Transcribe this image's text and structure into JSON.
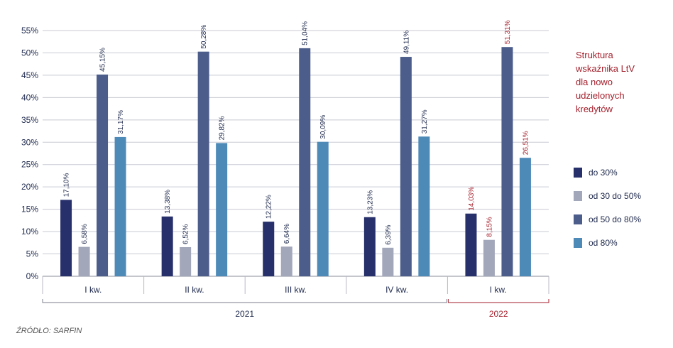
{
  "chart_data": {
    "type": "bar",
    "title_lines": [
      "Struktura",
      "wskaźnika LtV",
      "dla nowo",
      "udzielonych",
      "kredytów"
    ],
    "categories": [
      "I kw.",
      "II kw.",
      "III kw.",
      "IV kw.",
      "I kw."
    ],
    "years": [
      {
        "label": "2021",
        "span": [
          0,
          3
        ]
      },
      {
        "label": "2022",
        "span": [
          4,
          4
        ]
      }
    ],
    "ylim": [
      0,
      55
    ],
    "yticks": [
      0,
      5,
      10,
      15,
      20,
      25,
      30,
      35,
      40,
      45,
      50,
      55
    ],
    "ytick_labels": [
      "0%",
      "5%",
      "10%",
      "15%",
      "20%",
      "25%",
      "30%",
      "35%",
      "40%",
      "45%",
      "50%",
      "55%"
    ],
    "grid": true,
    "legend_position": "right",
    "series": [
      {
        "name": "do 30%",
        "color": "#27306b",
        "values": [
          17.1,
          13.38,
          12.22,
          13.23,
          14.03
        ],
        "labels": [
          "17,10%",
          "13,38%",
          "12,22%",
          "13,23%",
          "14,03%"
        ]
      },
      {
        "name": "od 30 do 50%",
        "color": "#a3a7ba",
        "values": [
          6.58,
          6.52,
          6.64,
          6.39,
          8.15
        ],
        "labels": [
          "6,58%",
          "6,52%",
          "6,64%",
          "6,39%",
          "8,15%"
        ]
      },
      {
        "name": "od 50 do 80%",
        "color": "#4c5d8b",
        "values": [
          45.15,
          50.28,
          51.04,
          49.11,
          51.31
        ],
        "labels": [
          "45,15%",
          "50,28%",
          "51,04%",
          "49,11%",
          "51,31%"
        ]
      },
      {
        "name": "od 80%",
        "color": "#4d8ab8",
        "values": [
          31.17,
          29.82,
          30.09,
          31.27,
          26.51
        ],
        "labels": [
          "31,17%",
          "29,82%",
          "30,09%",
          "31,27%",
          "26,51%"
        ]
      }
    ],
    "label_colors": {
      "default": "#1f2a4d",
      "highlight": "#a31f2b"
    },
    "highlight_category_index": 4,
    "source": "ŹRÓDŁO: SARFIN"
  }
}
